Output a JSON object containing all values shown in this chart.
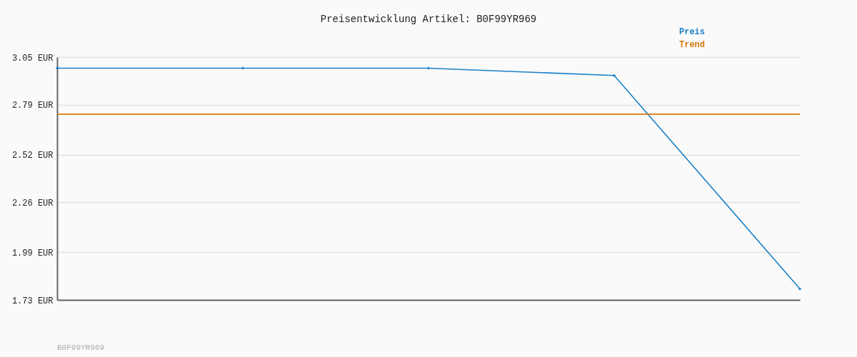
{
  "chart_data": {
    "type": "line",
    "title": "Preisentwicklung Artikel: B0F99YR969",
    "categories": [
      null,
      null,
      null,
      null,
      null
    ],
    "series": [
      {
        "name": "Preis",
        "color": "#1a80c8",
        "marker": "diamond",
        "values": [
          2.99,
          2.99,
          2.99,
          2.95,
          1.79
        ]
      },
      {
        "name": "Trend",
        "color": "#d97a0a",
        "marker": "none",
        "values": [
          2.74,
          2.74,
          2.74,
          2.74,
          2.74
        ]
      }
    ],
    "ylim": [
      1.73,
      3.05
    ],
    "yticks": [
      {
        "value": 1.73,
        "label": "1.73 EUR"
      },
      {
        "value": 1.99,
        "label": "1.99 EUR"
      },
      {
        "value": 2.26,
        "label": "2.26 EUR"
      },
      {
        "value": 2.52,
        "label": "2.52 EUR"
      },
      {
        "value": 2.79,
        "label": "2.79 EUR"
      },
      {
        "value": 3.05,
        "label": "3.05 EUR"
      }
    ],
    "grid": "y",
    "legend": "top right",
    "tick_labels": "y",
    "annotations": [
      "B0F99YR969"
    ]
  }
}
